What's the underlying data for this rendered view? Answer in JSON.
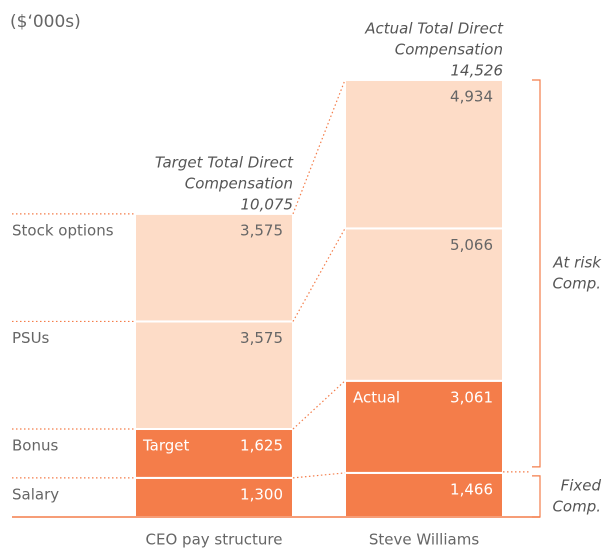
{
  "chart_data": {
    "type": "stacked_bar",
    "unit_label": "($‘000s)",
    "categories": [
      "CEO pay structure",
      "Steve Williams"
    ],
    "series": [
      {
        "name": "Salary",
        "color": "#f47d4a",
        "values": [
          1300,
          1466
        ],
        "value_labels": [
          "1,300",
          "1,466"
        ]
      },
      {
        "name": "Bonus",
        "color": "#f47d4a",
        "values": [
          1625,
          3061
        ],
        "value_labels": [
          "1,625",
          "3,061"
        ],
        "tags": [
          "Target",
          "Actual"
        ]
      },
      {
        "name": "PSUs",
        "color": "#fddcc7",
        "values": [
          3575,
          5066
        ],
        "value_labels": [
          "3,575",
          "5,066"
        ]
      },
      {
        "name": "Stock options",
        "color": "#fddcc7",
        "values": [
          3575,
          4934
        ],
        "value_labels": [
          "3,575",
          "4,934"
        ]
      }
    ],
    "totals": [
      10075,
      14526
    ],
    "total_labels": [
      "10,075",
      "14,526"
    ],
    "total_titles": [
      [
        "Target Total Direct",
        "Compensation"
      ],
      [
        "Actual Total Direct",
        "Compensation"
      ]
    ],
    "brackets": [
      [
        "At risk",
        "Comp."
      ],
      [
        "Fixed",
        "Comp."
      ]
    ]
  }
}
